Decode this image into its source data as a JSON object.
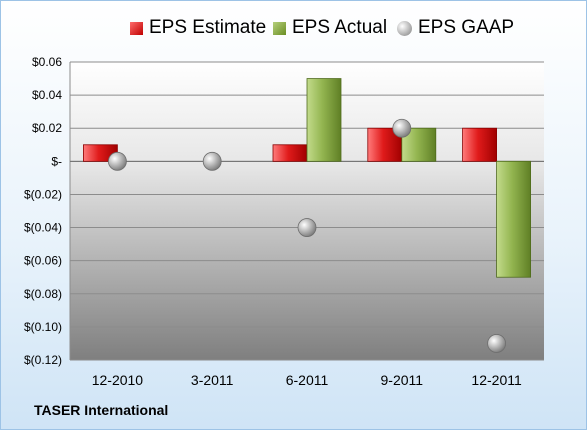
{
  "company": "TASER International",
  "chart_data": {
    "type": "bar",
    "categories": [
      "12-2010",
      "3-2011",
      "6-2011",
      "9-2011",
      "12-2011"
    ],
    "series": [
      {
        "name": "EPS Estimate",
        "kind": "bar",
        "color": "#c00000",
        "values": [
          0.01,
          null,
          0.01,
          0.02,
          0.02
        ]
      },
      {
        "name": "EPS Actual",
        "kind": "bar",
        "color": "#77933c",
        "values": [
          null,
          null,
          0.05,
          0.02,
          -0.07
        ]
      },
      {
        "name": "EPS GAAP",
        "kind": "marker",
        "color": "#a6a6a6",
        "values": [
          0.0,
          0.0,
          -0.04,
          0.02,
          -0.11
        ]
      }
    ],
    "ylim": [
      -0.12,
      0.06
    ],
    "yticks": [
      0.06,
      0.04,
      0.02,
      0,
      -0.02,
      -0.04,
      -0.06,
      -0.08,
      -0.1,
      -0.12
    ],
    "ytick_labels": [
      "$0.06",
      "$0.04",
      "$0.02",
      "$-",
      "$(0.02)",
      "$(0.04)",
      "$(0.06)",
      "$(0.08)",
      "$(0.10)",
      "$(0.12)"
    ],
    "grid": true,
    "legend_position": "top"
  }
}
